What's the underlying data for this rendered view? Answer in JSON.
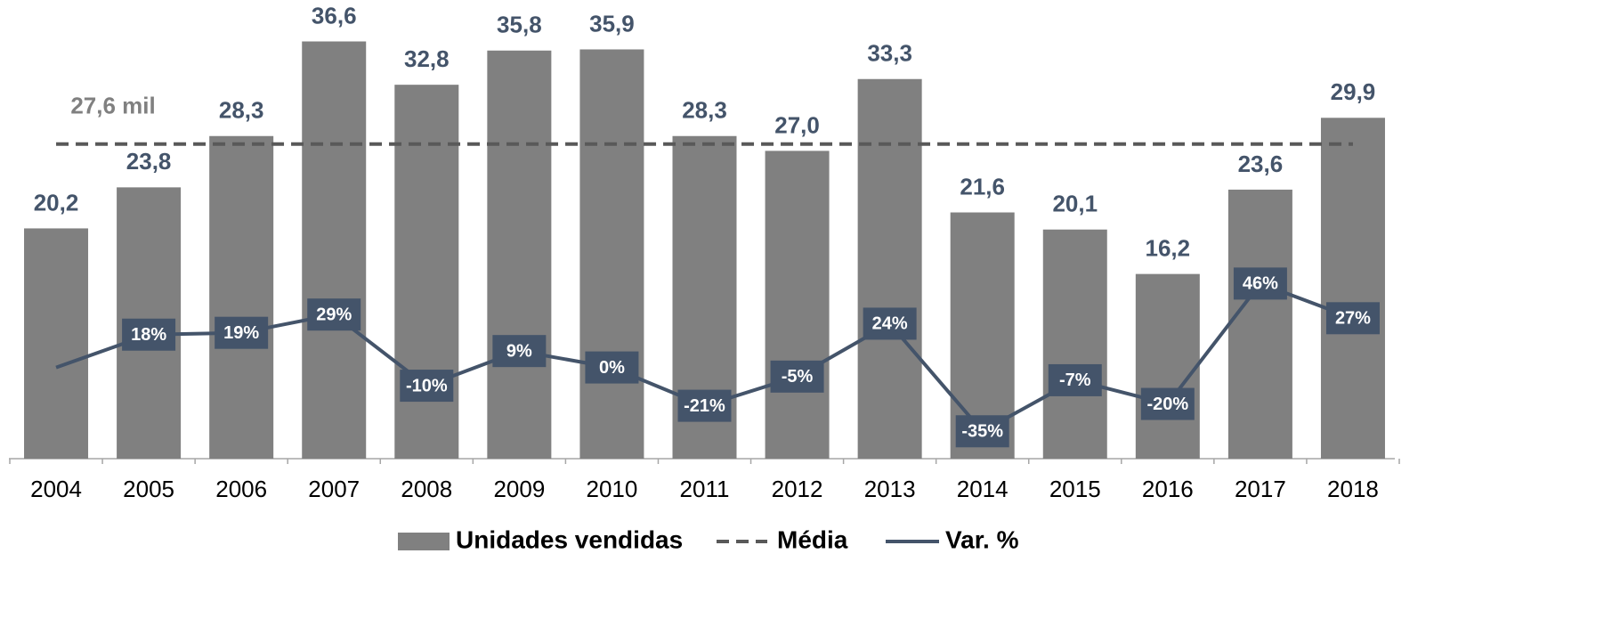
{
  "chart_data": {
    "type": "bar",
    "categories": [
      "2004",
      "2005",
      "2006",
      "2007",
      "2008",
      "2009",
      "2010",
      "2011",
      "2012",
      "2013",
      "2014",
      "2015",
      "2016",
      "2017",
      "2018"
    ],
    "series": [
      {
        "name": "Unidades vendidas",
        "type": "bar",
        "color": "#808080",
        "values": [
          20.2,
          23.8,
          28.3,
          36.6,
          32.8,
          35.8,
          35.9,
          28.3,
          27.0,
          33.3,
          21.6,
          20.1,
          16.2,
          23.6,
          29.9
        ],
        "value_labels": [
          "20,2",
          "23,8",
          "28,3",
          "36,6",
          "32,8",
          "35,8",
          "35,9",
          "28,3",
          "27,0",
          "33,3",
          "21,6",
          "20,1",
          "16,2",
          "23,6",
          "29,9"
        ]
      },
      {
        "name": "Var. %",
        "type": "line",
        "axis": "y2",
        "color": "#44546a",
        "values": [
          0,
          18,
          19,
          29,
          -10,
          9,
          0,
          -21,
          -5,
          24,
          -35,
          -7,
          -20,
          46,
          27
        ],
        "value_labels": [
          null,
          "18%",
          "19%",
          "29%",
          "-10%",
          "9%",
          "0%",
          "-21%",
          "-5%",
          "24%",
          "-35%",
          "-7%",
          "-20%",
          "46%",
          "27%"
        ]
      }
    ],
    "average": {
      "name": "Média",
      "value": 27.6,
      "label": "27,6 mil",
      "color": "#595959"
    },
    "ylim": [
      0,
      40
    ],
    "y2lim": [
      -50,
      200
    ]
  }
}
